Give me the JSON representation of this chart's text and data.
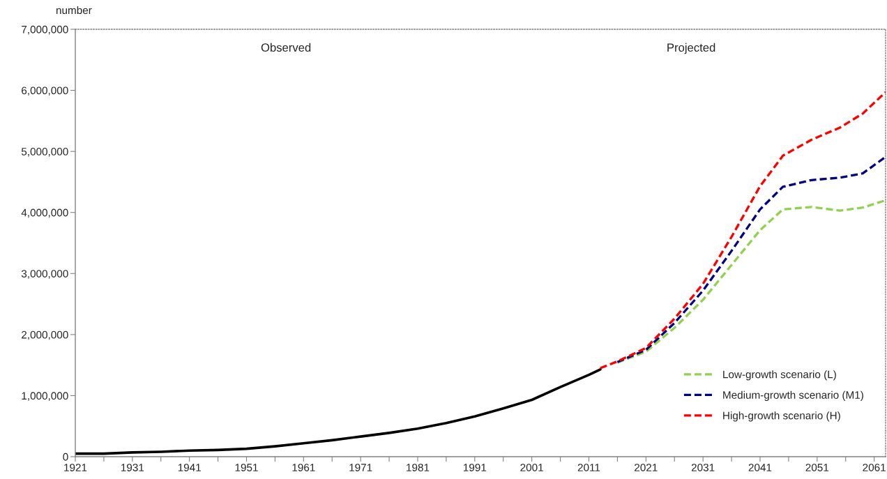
{
  "chart_data": {
    "type": "line",
    "ylabel": "number",
    "annotations": [
      "Observed",
      "Projected"
    ],
    "series": [
      {
        "color": "#000000",
        "line_style": "solid",
        "x": [
          1921,
          1926,
          1931,
          1936,
          1941,
          1946,
          1951,
          1956,
          1961,
          1966,
          1971,
          1976,
          1981,
          1986,
          1991,
          1996,
          2001,
          2006,
          2011,
          2013
        ],
        "values": [
          50000,
          50000,
          70000,
          80000,
          100000,
          110000,
          130000,
          170000,
          220000,
          270000,
          330000,
          390000,
          460000,
          550000,
          660000,
          790000,
          930000,
          1140000,
          1340000,
          1430000
        ]
      },
      {
        "name": "Low-growth scenario (L)",
        "color": "#92d050",
        "line_style": "dashed",
        "x": [
          2016,
          2021,
          2026,
          2031,
          2036,
          2041,
          2045,
          2050,
          2055,
          2059,
          2063
        ],
        "values": [
          1540000,
          1720000,
          2110000,
          2570000,
          3140000,
          3710000,
          4050000,
          4090000,
          4030000,
          4080000,
          4200000
        ]
      },
      {
        "name": "Medium-growth scenario (M1)",
        "color": "#000080",
        "line_style": "dashed",
        "x": [
          2016,
          2021,
          2026,
          2031,
          2036,
          2041,
          2045,
          2050,
          2055,
          2059,
          2063
        ],
        "values": [
          1550000,
          1750000,
          2190000,
          2720000,
          3370000,
          4050000,
          4420000,
          4530000,
          4570000,
          4640000,
          4910000
        ]
      },
      {
        "name": "High-growth scenario (H)",
        "color": "#ff0000",
        "line_style": "dashed",
        "x": [
          2013,
          2016,
          2021,
          2026,
          2031,
          2036,
          2041,
          2045,
          2050,
          2055,
          2059,
          2063
        ],
        "values": [
          1450000,
          1560000,
          1780000,
          2260000,
          2830000,
          3600000,
          4430000,
          4930000,
          5190000,
          5390000,
          5620000,
          5970000
        ]
      }
    ],
    "xlim": [
      1921,
      2063
    ],
    "xticks": [
      1921,
      {
        "value": 1926,
        "label": null
      },
      1931,
      {
        "value": 1936,
        "label": null
      },
      1941,
      {
        "value": 1946,
        "label": null
      },
      1951,
      {
        "value": 1956,
        "label": null
      },
      1961,
      {
        "value": 1966,
        "label": null
      },
      1971,
      {
        "value": 1976,
        "label": null
      },
      1981,
      {
        "value": 1986,
        "label": null
      },
      1991,
      {
        "value": 1996,
        "label": null
      },
      2001,
      {
        "value": 2006,
        "label": null
      },
      2011,
      {
        "value": 2016,
        "label": null
      },
      2021,
      {
        "value": 2026,
        "label": null
      },
      2031,
      {
        "value": 2036,
        "label": null
      },
      2041,
      {
        "value": 2046,
        "label": null
      },
      2051,
      {
        "value": 2056,
        "label": null
      },
      2061
    ],
    "ylim": [
      0,
      7000000
    ],
    "yticks": [
      0,
      {
        "value": 1000000,
        "label": "1,000,000"
      },
      {
        "value": 2000000,
        "label": "2,000,000"
      },
      {
        "value": 3000000,
        "label": "3,000,000"
      },
      {
        "value": 4000000,
        "label": "4,000,000"
      },
      {
        "value": 5000000,
        "label": "5,000,000"
      },
      {
        "value": 6000000,
        "label": "6,000,000"
      },
      {
        "value": 7000000,
        "label": "7,000,000"
      }
    ],
    "grid": false,
    "legend": "bottom right",
    "marker": "none"
  }
}
